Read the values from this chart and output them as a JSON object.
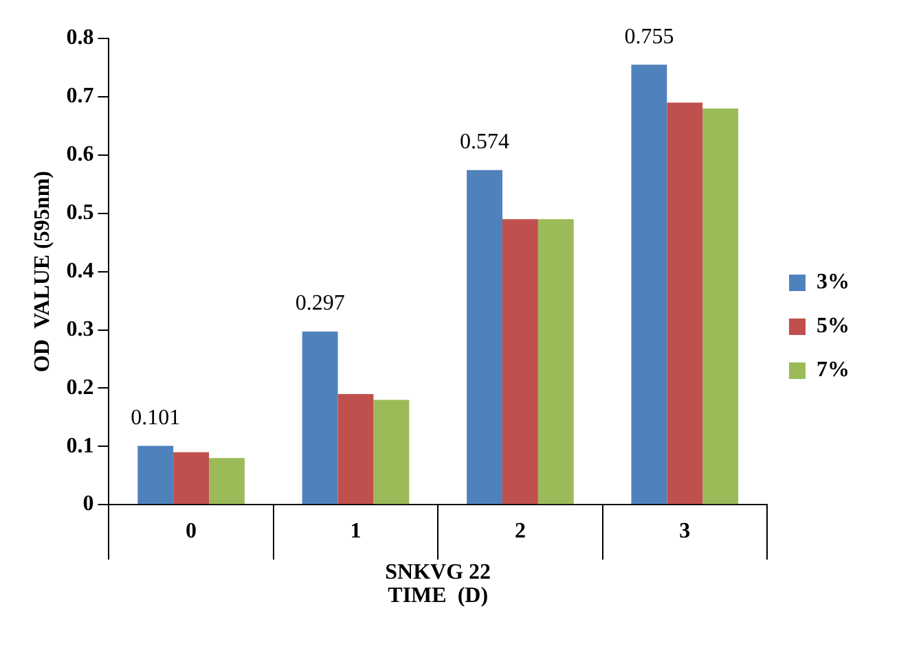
{
  "chart_data": {
    "type": "bar",
    "categories": [
      "0",
      "1",
      "2",
      "3"
    ],
    "ylabel": "OD  VALUE (595nm)",
    "xlabel": "TIME  (D)",
    "annotations": [
      "SNKVG 22"
    ],
    "ylim": [
      0,
      0.8
    ],
    "yticks": [
      0,
      0.1,
      0.2,
      0.3,
      0.4,
      0.5,
      0.6,
      0.7,
      0.8
    ],
    "grid": false,
    "legend": "right",
    "series": [
      {
        "name": "3%",
        "color": "#4f81bd",
        "values": [
          0.101,
          0.297,
          0.574,
          0.755
        ],
        "value_labels": [
          "0.101",
          "0.297",
          "0.574",
          "0.755"
        ]
      },
      {
        "name": "5%",
        "color": "#c0504d",
        "values": [
          0.09,
          0.19,
          0.49,
          0.69
        ]
      },
      {
        "name": "7%",
        "color": "#9bbb59",
        "values": [
          0.08,
          0.18,
          0.49,
          0.68
        ]
      }
    ]
  }
}
